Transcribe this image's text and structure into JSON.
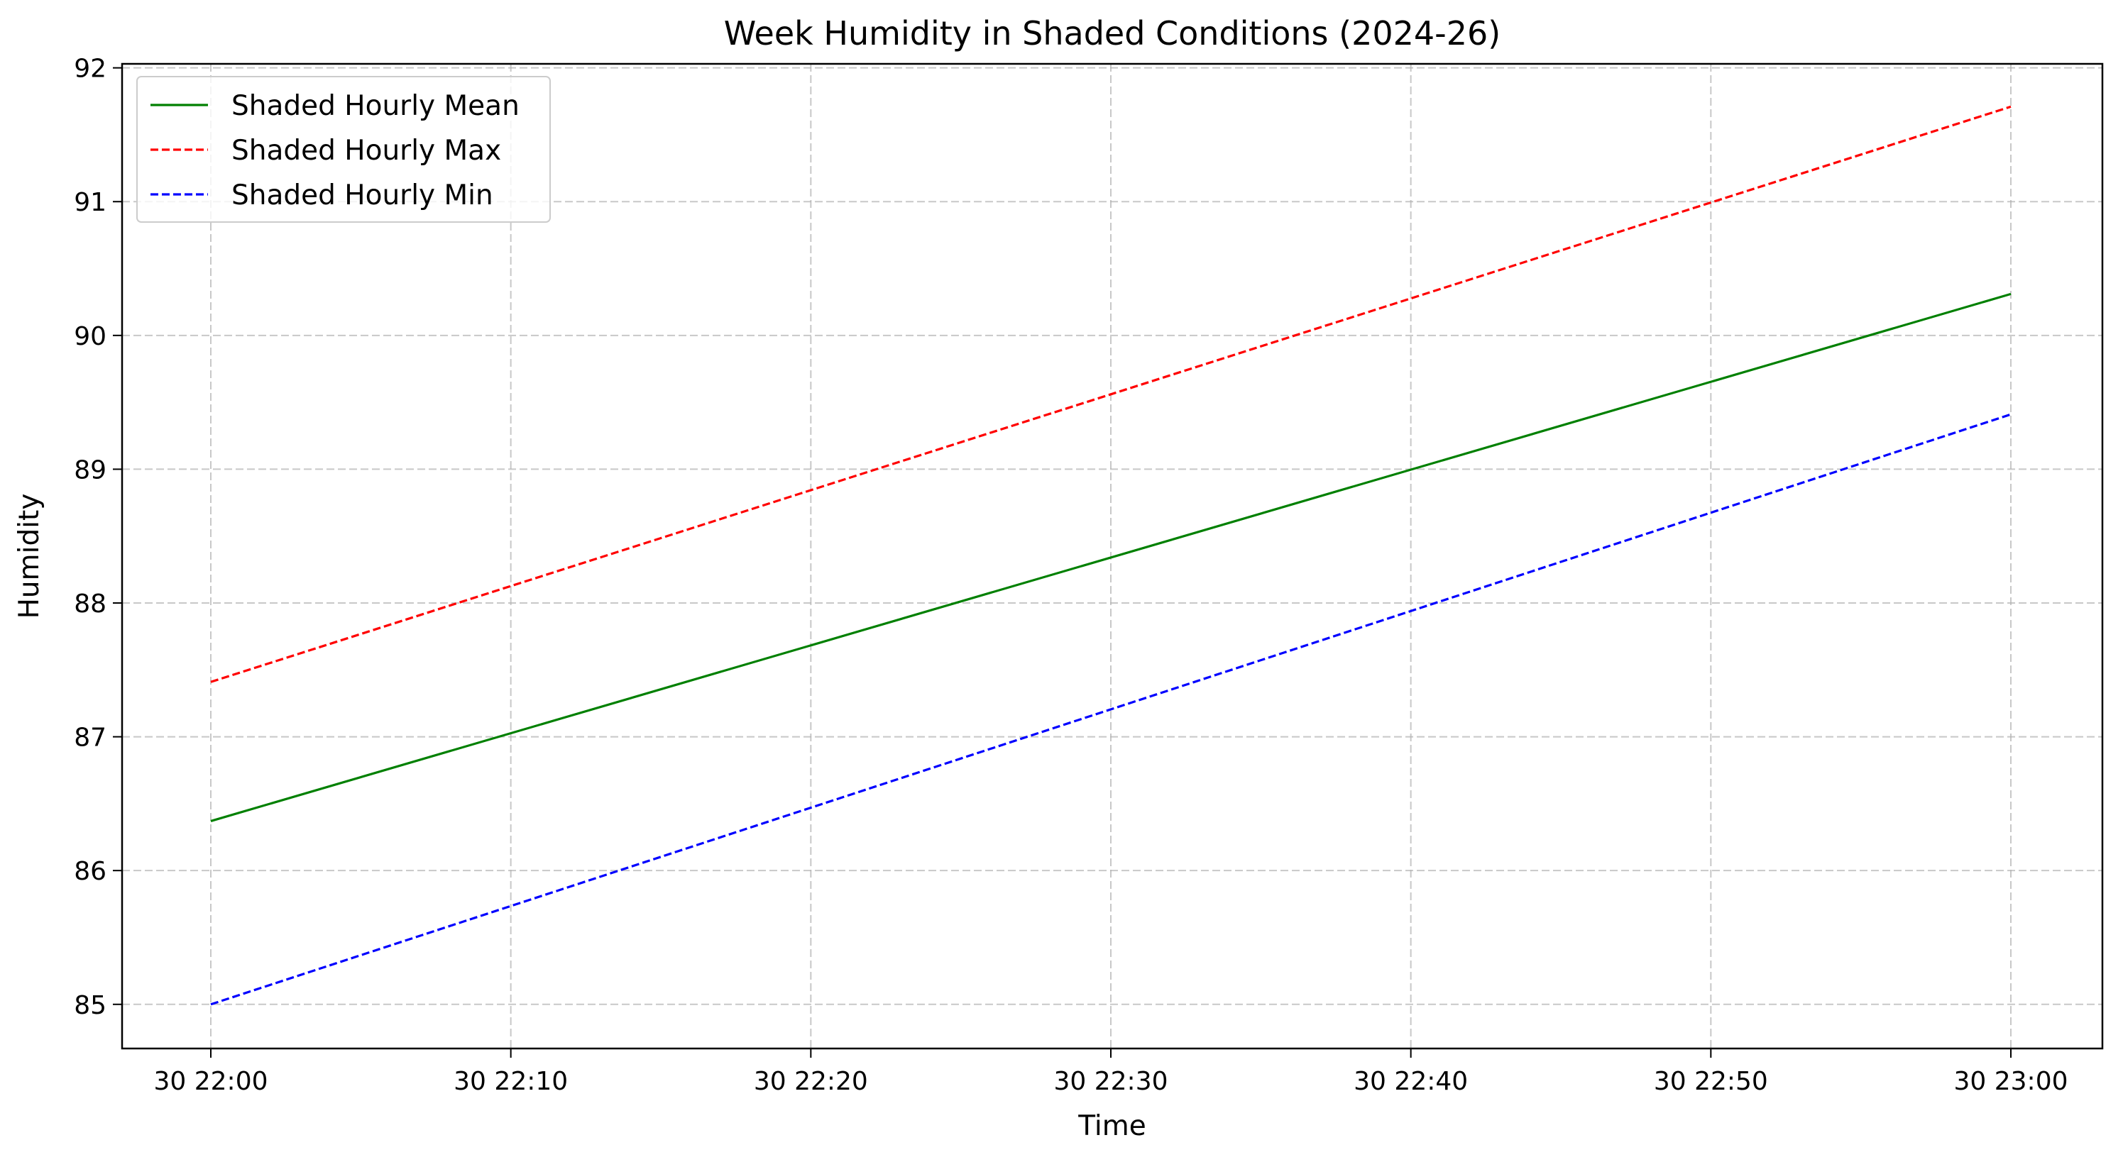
{
  "chart_data": {
    "type": "line",
    "title": "Week Humidity in Shaded Conditions (2024-26)",
    "xlabel": "Time",
    "ylabel": "Humidity",
    "x": [
      "30 22:00",
      "30 23:00"
    ],
    "x_ticks": [
      "30 22:00",
      "30 22:10",
      "30 22:20",
      "30 22:30",
      "30 22:40",
      "30 22:50",
      "30 23:00"
    ],
    "y_ticks": [
      "85",
      "86",
      "87",
      "88",
      "89",
      "90",
      "91",
      "92"
    ],
    "ylim": [
      84.67,
      92.03
    ],
    "grid": true,
    "legend_position": "top-left",
    "series": [
      {
        "name": "Shaded Hourly Mean",
        "values": [
          86.37,
          90.31
        ],
        "color": "#008000",
        "style": "solid"
      },
      {
        "name": "Shaded Hourly Max",
        "values": [
          87.41,
          91.71
        ],
        "color": "#ff0000",
        "style": "dashed"
      },
      {
        "name": "Shaded Hourly Min",
        "values": [
          85.0,
          89.41
        ],
        "color": "#0000ff",
        "style": "dashed"
      }
    ]
  }
}
